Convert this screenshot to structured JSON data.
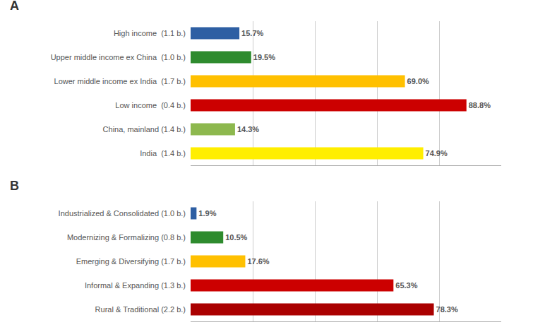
{
  "chart_data": [
    {
      "type": "bar",
      "orientation": "horizontal",
      "title": "A",
      "categories": [
        "High income  (1.1 b.)",
        "Upper middle income ex China  (1.0 b.)",
        "Lower middle income ex India  (1.7 b.)",
        "Low income  (0.4 b.)",
        "China, mainland (1.4 b.)",
        "India  (1.4 b.)"
      ],
      "values": [
        15.7,
        19.5,
        69.0,
        88.8,
        14.3,
        74.9
      ],
      "value_labels": [
        "15.7%",
        "19.5%",
        "69.0%",
        "88.8%",
        "14.3%",
        "74.9%"
      ],
      "data_labels": true,
      "colors": [
        "#2E5FA3",
        "#2E8B2E",
        "#FFC000",
        "#CC0000",
        "#8DB84E",
        "#FFEE00"
      ],
      "xlim": [
        0,
        100
      ],
      "xticks": [
        20,
        40,
        60,
        80,
        100
      ],
      "grid": true,
      "tick_labels": "y"
    },
    {
      "type": "bar",
      "orientation": "horizontal",
      "title": "B",
      "categories": [
        "Industrialized & Consolidated (1.0 b.)",
        "Modernizing & Formalizing (0.8 b.)",
        "Emerging & Diversifying (1.7 b.)",
        "Informal & Expanding (1.3 b.)",
        "Rural & Traditional (2.2 b.)"
      ],
      "values": [
        1.9,
        10.5,
        17.6,
        65.3,
        78.3
      ],
      "value_labels": [
        "1.9%",
        "10.5%",
        "17.6%",
        "65.3%",
        "78.3%"
      ],
      "data_labels": true,
      "colors": [
        "#2E5FA3",
        "#2E8B2E",
        "#FFC000",
        "#CC0000",
        "#AA0000"
      ],
      "xlim": [
        0,
        100
      ],
      "xticks": [
        20,
        40,
        60,
        80,
        100
      ],
      "grid": true,
      "tick_labels": "y"
    }
  ]
}
